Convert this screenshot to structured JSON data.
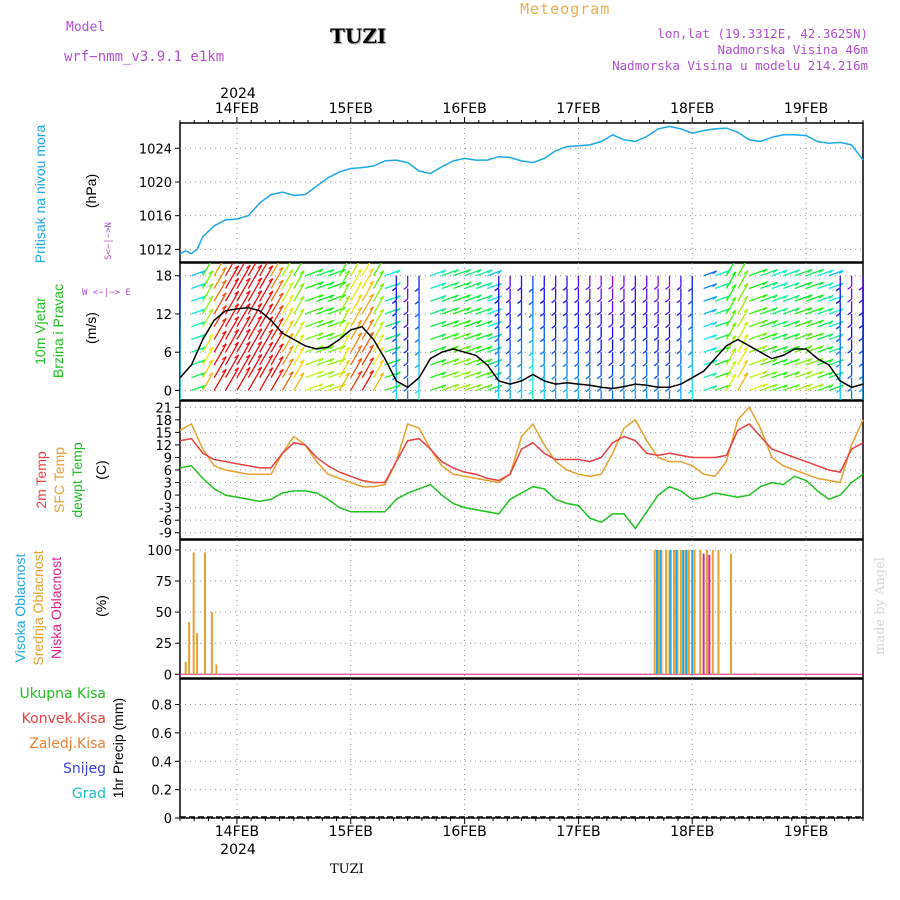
{
  "header": {
    "model_label": "Model",
    "model_name": "wrf−nmm_v3.9.1  e1km",
    "title": "Meteogram",
    "station": "TUZI",
    "coords": "lon,lat (19.3312E, 42.3625N)",
    "elevation": "Nadmorska Visina 46m",
    "model_elevation": "Nadmorska Visina u modelu 214.216m",
    "made_by": "made by Angel",
    "bottom_station": "TUZI"
  },
  "time_axis": {
    "year": "2024",
    "day_labels": [
      "14FEB",
      "15FEB",
      "16FEB",
      "17FEB",
      "18FEB",
      "19FEB"
    ],
    "day_index": [
      0,
      1,
      2,
      3,
      4,
      5
    ],
    "start": -0.5,
    "end": 5.5
  },
  "panel_labels": {
    "pressure": "Pritisak na nivou mora",
    "pressure_unit": "(hPa)",
    "wind_a": "10m Vjetar",
    "wind_b": "Brzina i Pravac",
    "wind_unit": "(m/s)",
    "compass_n": "N",
    "compass_s": "S",
    "compass_w": "W",
    "compass_e": "E",
    "compass_ns": "S<−|−>N",
    "compass_we": "W <−|−> E",
    "temp_a": "2m Temp",
    "temp_b": "SFC Temp",
    "temp_c": "dewpt Temp",
    "temp_unit": "(C)",
    "cloud_a": "Visoka Oblacnost",
    "cloud_b": "Srednja Oblacnost",
    "cloud_c": "Niska Oblacnost",
    "cloud_unit": "(%)",
    "precip_unit": "1hr Precip (mm)",
    "legend": [
      "Ukupna Kisa",
      "Konvek.Kisa",
      "Zaledj.Kisa",
      "Snijeg",
      "Grad"
    ]
  },
  "colors": {
    "pressure": "#1ea8e8",
    "temp2m": "#e84040",
    "sfc": "#e8a030",
    "dew": "#20c020",
    "high_cloud": "#1ea8e8",
    "mid_cloud": "#e8a030",
    "low_cloud": "#e0208a",
    "legend": [
      "#20c020",
      "#e84040",
      "#f08030",
      "#4040e0",
      "#20c0c0"
    ]
  },
  "chart_data": [
    {
      "type": "line",
      "name": "pressure",
      "x_unit": "days from 14FEB 00",
      "x": [
        -0.5,
        -0.45,
        -0.4,
        -0.35,
        -0.3,
        -0.2,
        -0.1,
        0.0,
        0.1,
        0.2,
        0.3,
        0.4,
        0.5,
        0.6,
        0.7,
        0.8,
        0.9,
        1.0,
        1.1,
        1.2,
        1.3,
        1.4,
        1.5,
        1.6,
        1.7,
        1.8,
        1.9,
        2.0,
        2.1,
        2.2,
        2.3,
        2.4,
        2.5,
        2.6,
        2.7,
        2.8,
        2.9,
        3.0,
        3.1,
        3.2,
        3.3,
        3.4,
        3.5,
        3.6,
        3.7,
        3.8,
        3.9,
        4.0,
        4.1,
        4.2,
        4.3,
        4.4,
        4.5,
        4.6,
        4.7,
        4.8,
        4.9,
        5.0,
        5.1,
        5.2,
        5.3,
        5.4,
        5.5
      ],
      "y": [
        1011.5,
        1011.8,
        1011.5,
        1012.0,
        1013.5,
        1014.8,
        1015.5,
        1015.6,
        1016.0,
        1017.5,
        1018.5,
        1018.8,
        1018.4,
        1018.5,
        1019.5,
        1020.5,
        1021.2,
        1021.6,
        1021.7,
        1021.9,
        1022.5,
        1022.6,
        1022.3,
        1021.3,
        1021.0,
        1021.8,
        1022.5,
        1022.8,
        1022.6,
        1022.6,
        1023.0,
        1022.9,
        1022.5,
        1022.3,
        1022.8,
        1023.7,
        1024.2,
        1024.3,
        1024.4,
        1024.8,
        1025.6,
        1025.0,
        1024.8,
        1025.4,
        1026.3,
        1026.6,
        1026.3,
        1025.8,
        1026.1,
        1026.3,
        1026.4,
        1025.9,
        1025.0,
        1024.8,
        1025.3,
        1025.6,
        1025.6,
        1025.5,
        1024.8,
        1024.6,
        1024.7,
        1024.4,
        1022.6
      ],
      "ylabel": "(hPa)",
      "yticks": [
        1012,
        1016,
        1020,
        1024
      ],
      "ylim": [
        1010.5,
        1027
      ]
    },
    {
      "type": "line",
      "name": "wind",
      "x": [
        -0.5,
        -0.4,
        -0.3,
        -0.2,
        -0.1,
        0.0,
        0.1,
        0.2,
        0.3,
        0.4,
        0.5,
        0.6,
        0.7,
        0.8,
        0.9,
        1.0,
        1.1,
        1.2,
        1.3,
        1.4,
        1.5,
        1.6,
        1.7,
        1.8,
        1.9,
        2.0,
        2.1,
        2.2,
        2.3,
        2.4,
        2.5,
        2.6,
        2.7,
        2.8,
        2.9,
        3.0,
        3.1,
        3.2,
        3.3,
        3.4,
        3.5,
        3.6,
        3.7,
        3.8,
        3.9,
        4.0,
        4.1,
        4.2,
        4.3,
        4.4,
        4.5,
        4.6,
        4.7,
        4.8,
        4.9,
        5.0,
        5.1,
        5.2,
        5.3,
        5.4,
        5.5
      ],
      "y": [
        2,
        4,
        8,
        11,
        12.5,
        12.8,
        13,
        12.5,
        11,
        9,
        8,
        7,
        6.5,
        6.8,
        8,
        9.5,
        10,
        8,
        5,
        1.5,
        0.5,
        2,
        5,
        6,
        6.5,
        6,
        5.5,
        4,
        1.5,
        1,
        1.5,
        2.5,
        1.5,
        1,
        1.2,
        1,
        0.8,
        0.5,
        0.3,
        0.6,
        1,
        0.8,
        0.5,
        0.5,
        1,
        2,
        3,
        5,
        7,
        8,
        7,
        6,
        5,
        5.5,
        6.5,
        6.5,
        5,
        4,
        1.5,
        0.5,
        1
      ],
      "ylabel": "(m/s)",
      "yticks": [
        0,
        6,
        12,
        18
      ],
      "ylim": [
        -1.5,
        20
      ],
      "barb_rows": [
        18,
        16,
        14,
        12,
        10,
        8,
        6,
        4,
        2,
        0
      ],
      "barb_step": 0.1
    },
    {
      "type": "line",
      "name": "temperature",
      "x": [
        -0.5,
        -0.4,
        -0.3,
        -0.2,
        -0.1,
        0.0,
        0.1,
        0.2,
        0.3,
        0.4,
        0.5,
        0.6,
        0.7,
        0.8,
        0.9,
        1.0,
        1.1,
        1.2,
        1.3,
        1.4,
        1.5,
        1.6,
        1.7,
        1.8,
        1.9,
        2.0,
        2.1,
        2.2,
        2.3,
        2.4,
        2.5,
        2.6,
        2.7,
        2.8,
        2.9,
        3.0,
        3.1,
        3.2,
        3.3,
        3.4,
        3.5,
        3.6,
        3.7,
        3.8,
        3.9,
        4.0,
        4.1,
        4.2,
        4.3,
        4.4,
        4.5,
        4.6,
        4.7,
        4.8,
        4.9,
        5.0,
        5.1,
        5.2,
        5.3,
        5.4,
        5.5
      ],
      "series": [
        {
          "name": "2m Temp",
          "values": [
            13,
            13.5,
            10,
            8.5,
            8,
            7.5,
            7,
            6.5,
            6.5,
            10,
            12.5,
            12,
            9,
            7,
            5.5,
            4.5,
            3.5,
            3,
            3,
            8,
            13,
            13.5,
            11,
            8,
            6.5,
            5.5,
            5,
            4,
            3.5,
            5,
            11,
            12.5,
            10,
            8.5,
            8.5,
            8.5,
            8,
            9,
            12.5,
            14,
            13,
            10,
            9.5,
            10,
            9.5,
            9,
            9,
            9,
            9.5,
            15.5,
            17,
            14,
            11,
            10,
            9,
            8,
            7,
            6,
            5.5,
            11,
            12.5
          ]
        },
        {
          "name": "SFC Temp",
          "values": [
            15.5,
            17,
            11,
            7,
            6,
            5.5,
            5,
            5,
            5,
            10,
            14,
            12,
            8,
            5,
            4,
            3,
            2,
            2,
            2.5,
            8,
            17,
            16,
            11,
            7,
            5,
            4.5,
            4,
            3.5,
            3,
            5,
            14,
            17,
            12,
            8,
            6,
            5,
            4.5,
            5,
            10,
            16,
            18,
            13,
            9,
            8,
            8,
            7,
            5,
            4.5,
            8,
            18,
            21,
            16,
            9,
            7,
            6,
            5,
            4,
            3.5,
            3,
            12,
            18
          ]
        },
        {
          "name": "dewpt Temp",
          "values": [
            6.5,
            7,
            4,
            1.5,
            0,
            -0.5,
            -1,
            -1.5,
            -1,
            0.5,
            1,
            1,
            0.5,
            -1,
            -3,
            -4,
            -4,
            -4,
            -4,
            -1,
            0.5,
            1.5,
            2.5,
            0,
            -2,
            -3,
            -3.5,
            -4,
            -4.5,
            -1,
            0.5,
            2,
            1.5,
            -1,
            -2,
            -2.5,
            -5.5,
            -6.5,
            -4.5,
            -4.5,
            -8,
            -4,
            0,
            2,
            1,
            -1,
            -0.5,
            0.5,
            0,
            -0.5,
            0,
            2,
            3,
            2.5,
            4.5,
            3.5,
            1,
            -1,
            0,
            3,
            5
          ]
        }
      ],
      "ylabel": "(C)",
      "yticks": [
        -9,
        -6,
        -3,
        0,
        3,
        6,
        9,
        12,
        15,
        18,
        21
      ],
      "ylim": [
        -10.5,
        22.5
      ]
    },
    {
      "type": "bar",
      "name": "cloudiness",
      "series": [
        {
          "name": "Visoka Oblacnost",
          "x": [
            3.69,
            3.72,
            3.81,
            3.86,
            3.92,
            3.95,
            4.0
          ],
          "values": [
            100,
            100,
            100,
            100,
            100,
            100,
            100
          ]
        },
        {
          "name": "Srednja Oblacnost",
          "x": [
            -0.45,
            -0.42,
            -0.38,
            -0.35,
            -0.28,
            -0.22,
            -0.18,
            3.67,
            3.7,
            3.73,
            3.77,
            3.8,
            3.84,
            3.87,
            3.9,
            3.94,
            3.97,
            4.02,
            4.07,
            4.13,
            4.18,
            4.23,
            4.34,
            4.55
          ],
          "values": [
            10,
            42,
            98,
            33,
            98,
            50,
            8,
            100,
            100,
            100,
            100,
            100,
            100,
            100,
            100,
            100,
            100,
            100,
            100,
            100,
            100,
            100,
            97,
            1
          ]
        },
        {
          "name": "Niska Oblacnost",
          "x": [
            4.1,
            4.15
          ],
          "values": [
            97,
            96
          ]
        }
      ],
      "ylabel": "(%)",
      "yticks": [
        0,
        25,
        50,
        75,
        100
      ],
      "ylim": [
        -3,
        108
      ]
    },
    {
      "type": "bar",
      "name": "precipitation",
      "series": [
        {
          "name": "Ukupna Kisa",
          "values": []
        },
        {
          "name": "Konvek.Kisa",
          "values": []
        },
        {
          "name": "Zaledj.Kisa",
          "values": []
        },
        {
          "name": "Snijeg",
          "values": []
        },
        {
          "name": "Grad",
          "values": []
        }
      ],
      "ylabel": "1hr Precip (mm)",
      "yticks": [
        0,
        0.2,
        0.4,
        0.6,
        0.8
      ],
      "ylim": [
        0,
        0.98
      ]
    }
  ]
}
